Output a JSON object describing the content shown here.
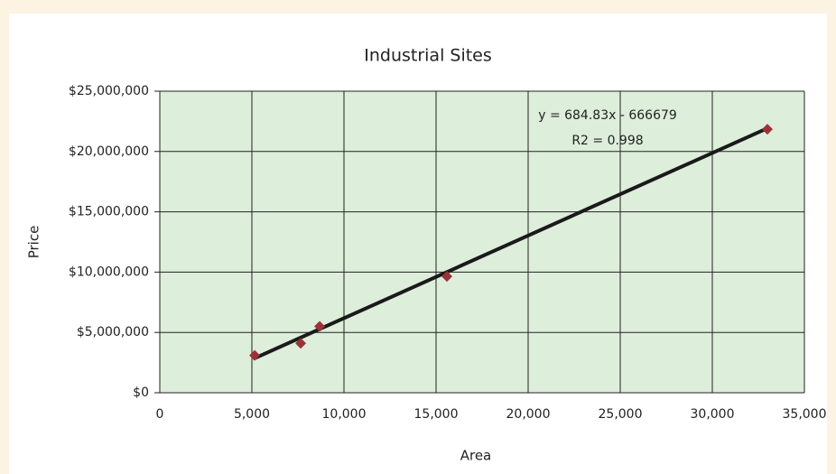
{
  "chart_data": {
    "type": "scatter",
    "title": "Industrial Sites",
    "x_label": "Area",
    "y_label": "Price",
    "series": [
      {
        "color": "#9b3238",
        "x": [
          5150,
          7650,
          8680,
          15590,
          32990
        ],
        "values": [
          3100000,
          4100000,
          5500000,
          9650000,
          21850000
        ]
      }
    ],
    "trendline": {
      "slope": 684.83,
      "intercept": -666679,
      "color": "#1a1a1a",
      "equation": "y = 684.83x - 666679",
      "r2": "R2 = 0.998"
    },
    "xlim": [
      0,
      35000
    ],
    "xticks": [
      0,
      {
        "value": 5000,
        "label": "5,000"
      },
      {
        "value": 10000,
        "label": "10,000"
      },
      {
        "value": 15000,
        "label": "15,000"
      },
      {
        "value": 20000,
        "label": "20,000"
      },
      {
        "value": 25000,
        "label": "25,000"
      },
      {
        "value": 30000,
        "label": "30,000"
      },
      {
        "value": 35000,
        "label": "35,000"
      }
    ],
    "ylim": [
      0,
      25000000
    ],
    "yticks": [
      {
        "value": 0,
        "label": "$0"
      },
      {
        "value": 5000000,
        "label": "$5,000,000"
      },
      {
        "value": 10000000,
        "label": "$10,000,000"
      },
      {
        "value": 15000000,
        "label": "$15,000,000"
      },
      {
        "value": 20000000,
        "label": "$20,000,000"
      },
      {
        "value": 25000000,
        "label": "$25,000,000"
      }
    ],
    "grid": true
  }
}
